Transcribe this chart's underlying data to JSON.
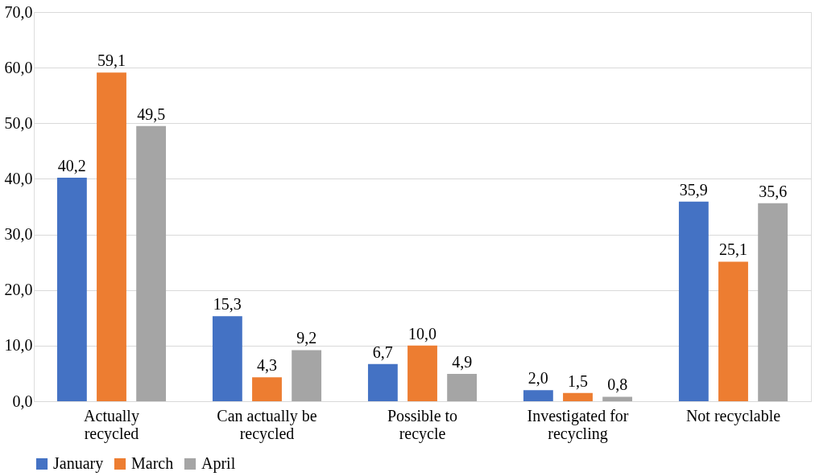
{
  "chart_data": {
    "type": "bar",
    "categories": [
      "Actually recycled",
      "Can actually be recycled",
      "Possible to recycle",
      "Investigated for recycling",
      "Not recyclable"
    ],
    "series": [
      {
        "name": "January",
        "color": "#4472c4",
        "values": [
          40.2,
          15.3,
          6.7,
          2.0,
          35.9
        ],
        "value_labels": [
          "40,2",
          "15,3",
          "6,7",
          "2,0",
          "35,9"
        ]
      },
      {
        "name": "March",
        "color": "#ed7d31",
        "values": [
          59.1,
          4.3,
          10.0,
          1.5,
          25.1
        ],
        "value_labels": [
          "59,1",
          "4,3",
          "10,0",
          "1,5",
          "25,1"
        ]
      },
      {
        "name": "April",
        "color": "#a5a5a5",
        "values": [
          49.5,
          9.2,
          4.9,
          0.8,
          35.6
        ],
        "value_labels": [
          "49,5",
          "9,2",
          "4,9",
          "0,8",
          "35,6"
        ]
      }
    ],
    "ylim": [
      0,
      70
    ],
    "yticks": [
      {
        "value": 0,
        "label": "0,0"
      },
      {
        "value": 10,
        "label": "10,0"
      },
      {
        "value": 20,
        "label": "20,0"
      },
      {
        "value": 30,
        "label": "30,0"
      },
      {
        "value": 40,
        "label": "40,0"
      },
      {
        "value": 50,
        "label": "50,0"
      },
      {
        "value": 60,
        "label": "60,0"
      },
      {
        "value": 70,
        "label": "70,0"
      }
    ],
    "grid": "y",
    "legend": "bottom"
  }
}
